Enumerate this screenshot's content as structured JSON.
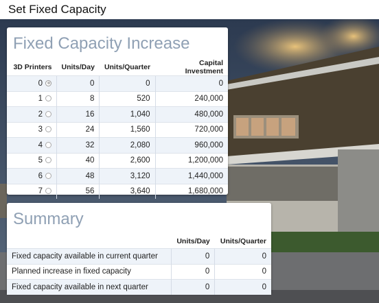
{
  "header": {
    "title": "Set Fixed Capacity"
  },
  "capacity": {
    "title": "Fixed Capacity Increase",
    "columns": [
      "3D Printers",
      "Units/Day",
      "Units/Quarter",
      "Capital Investment"
    ],
    "selected": 0,
    "rows": [
      [
        0,
        0,
        0,
        0
      ],
      [
        1,
        8,
        520,
        "240,000"
      ],
      [
        2,
        16,
        "1,040",
        "480,000"
      ],
      [
        3,
        24,
        "1,560",
        "720,000"
      ],
      [
        4,
        32,
        "2,080",
        "960,000"
      ],
      [
        5,
        40,
        "2,600",
        "1,200,000"
      ],
      [
        6,
        48,
        "3,120",
        "1,440,000"
      ],
      [
        7,
        56,
        "3,640",
        "1,680,000"
      ]
    ]
  },
  "summary": {
    "title": "Summary",
    "columns": [
      "Units/Day",
      "Units/Quarter"
    ],
    "rows": [
      [
        "Fixed capacity available in current quarter",
        0,
        0
      ],
      [
        "Planned increase in fixed capacity",
        0,
        0
      ],
      [
        "Fixed capacity available in next quarter",
        0,
        0
      ]
    ]
  }
}
